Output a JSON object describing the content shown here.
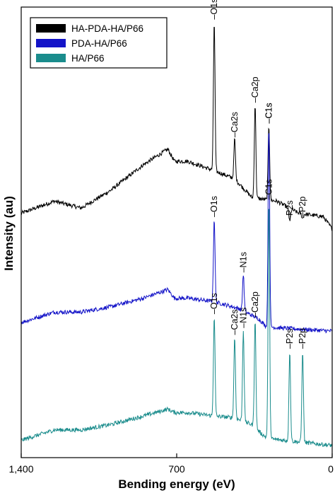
{
  "chart_data": {
    "type": "line",
    "xlabel": "Bending energy (eV)",
    "ylabel": "Intensity (au)",
    "x_direction": "reversed",
    "xlim": [
      1400,
      0
    ],
    "x_ticks": [
      {
        "value": 1400,
        "label": "1,400"
      },
      {
        "value": 700,
        "label": "700"
      },
      {
        "value": 0,
        "label": "0"
      }
    ],
    "y_ticks": "none",
    "grid": false,
    "legend_position": "top-left",
    "series": [
      {
        "name": "HA-PDA-HA/P66",
        "color": "#000000",
        "points": [
          [
            1400,
            0.405
          ],
          [
            1250,
            0.44
          ],
          [
            1130,
            0.42
          ],
          [
            1000,
            0.47
          ],
          [
            850,
            0.545
          ],
          [
            740,
            0.59
          ],
          [
            710,
            0.555
          ],
          [
            650,
            0.555
          ],
          [
            540,
            0.53
          ],
          [
            440,
            0.505
          ],
          [
            360,
            0.45
          ],
          [
            250,
            0.44
          ],
          [
            150,
            0.405
          ],
          [
            40,
            0.395
          ],
          [
            0,
            0.36
          ]
        ],
        "peaks": [
          {
            "label": "O1s",
            "energy": 531,
            "height": 0.96
          },
          {
            "label": "Ca2s",
            "energy": 439,
            "height": 0.62
          },
          {
            "label": "Ca2p",
            "energy": 347,
            "height": 0.72
          },
          {
            "label": "C1s",
            "energy": 285,
            "height": 0.66
          },
          {
            "label": "P2s",
            "energy": 191,
            "height": 0.38
          },
          {
            "label": "P2p",
            "energy": 133,
            "height": 0.39
          }
        ]
      },
      {
        "name": "PDA-HA/P66",
        "color": "#1414c8",
        "points": [
          [
            1400,
            0.09
          ],
          [
            1250,
            0.12
          ],
          [
            1130,
            0.12
          ],
          [
            1000,
            0.135
          ],
          [
            850,
            0.16
          ],
          [
            740,
            0.185
          ],
          [
            710,
            0.16
          ],
          [
            650,
            0.16
          ],
          [
            530,
            0.15
          ],
          [
            420,
            0.13
          ],
          [
            330,
            0.1
          ],
          [
            300,
            0.08
          ],
          [
            250,
            0.075
          ],
          [
            0,
            0.065
          ]
        ],
        "peaks": [
          {
            "label": "O1s",
            "energy": 531,
            "height": 0.39
          },
          {
            "label": "N1s",
            "energy": 400,
            "height": 0.23
          },
          {
            "label": "C1s",
            "energy": 285,
            "height": 0.66
          }
        ]
      },
      {
        "name": "HA/P66",
        "color": "#1a8c8c",
        "points": [
          [
            1400,
            -0.25
          ],
          [
            1250,
            -0.22
          ],
          [
            1130,
            -0.22
          ],
          [
            1000,
            -0.205
          ],
          [
            850,
            -0.18
          ],
          [
            740,
            -0.16
          ],
          [
            710,
            -0.17
          ],
          [
            650,
            -0.17
          ],
          [
            530,
            -0.18
          ],
          [
            440,
            -0.185
          ],
          [
            360,
            -0.205
          ],
          [
            320,
            -0.23
          ],
          [
            290,
            -0.245
          ],
          [
            0,
            -0.265
          ]
        ],
        "peaks": [
          {
            "label": "O1s",
            "energy": 531,
            "height": 0.11
          },
          {
            "label": "Ca2s",
            "energy": 439,
            "height": 0.05
          },
          {
            "label": "N1s",
            "energy": 400,
            "height": 0.07
          },
          {
            "label": "Ca2p",
            "energy": 347,
            "height": 0.1
          },
          {
            "label": "C1s",
            "energy": 285,
            "height": 0.44
          },
          {
            "label": "P2s",
            "energy": 191,
            "height": 0.01
          },
          {
            "label": "P2p",
            "energy": 133,
            "height": 0.01
          }
        ]
      }
    ]
  }
}
